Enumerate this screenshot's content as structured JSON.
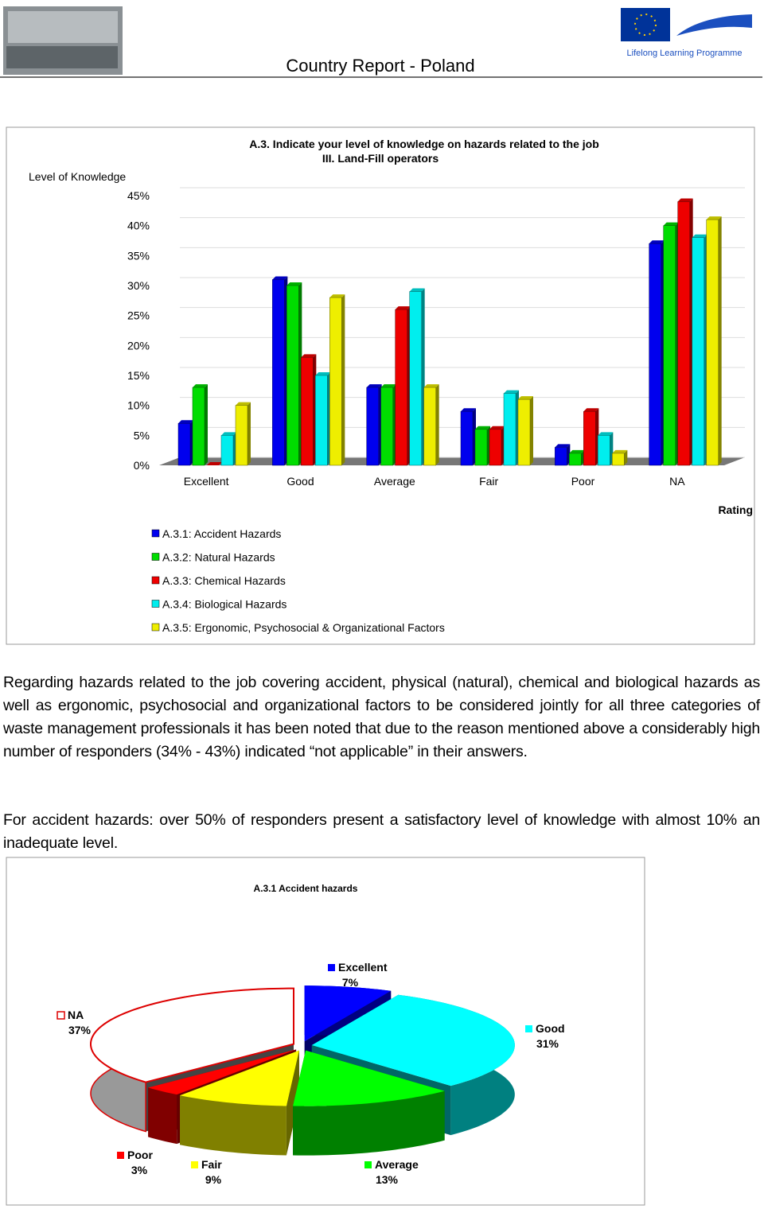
{
  "header": {
    "title": "Country Report - Poland",
    "programme": "Lifelong Learning Programme"
  },
  "chart_data": [
    {
      "type": "bar",
      "title": "A.3. Indicate your level of knowledge on hazards related to the job",
      "subtitle": "III. Land-Fill operators",
      "ylabel": "Level of Knowledge",
      "xlabel": "Rating",
      "categories": [
        "Excellent",
        "Good",
        "Average",
        "Fair",
        "Poor",
        "NA"
      ],
      "series": [
        {
          "name": "A.3.1: Accident Hazards",
          "color": "#0000ee",
          "values": [
            7,
            31,
            13,
            9,
            3,
            37
          ]
        },
        {
          "name": "A.3.2: Natural Hazards",
          "color": "#00dd00",
          "values": [
            13,
            30,
            13,
            6,
            2,
            40
          ]
        },
        {
          "name": "A.3.3: Chemical Hazards",
          "color": "#ee0000",
          "values": [
            0,
            18,
            26,
            6,
            9,
            44
          ]
        },
        {
          "name": "A.3.4: Biological Hazards",
          "color": "#00eeee",
          "values": [
            5,
            15,
            29,
            12,
            5,
            38
          ]
        },
        {
          "name": "A.3.5: Ergonomic, Psychosocial & Organizational Factors",
          "color": "#eeee00",
          "values": [
            10,
            28,
            13,
            11,
            2,
            41
          ]
        }
      ],
      "ylim": [
        0,
        45
      ],
      "yticks": [
        {
          "value": 0,
          "label": "0%"
        },
        {
          "value": 5,
          "label": "5%"
        },
        {
          "value": 10,
          "label": "10%"
        },
        {
          "value": 15,
          "label": "15%"
        },
        {
          "value": 20,
          "label": "20%"
        },
        {
          "value": 25,
          "label": "25%"
        },
        {
          "value": 30,
          "label": "30%"
        },
        {
          "value": 35,
          "label": "35%"
        },
        {
          "value": 40,
          "label": "40%"
        },
        {
          "value": 45,
          "label": "45%"
        }
      ],
      "grid": true
    },
    {
      "type": "pie",
      "title": "A.3.1 Accident hazards",
      "categories": [
        "Excellent",
        "Good",
        "Average",
        "Fair",
        "Poor",
        "NA"
      ],
      "values": [
        7,
        31,
        13,
        9,
        3,
        37
      ],
      "value_labels": [
        "7%",
        "31%",
        "13%",
        "9%",
        "3%",
        "37%"
      ],
      "colors": [
        "#0000ff",
        "#00ffff",
        "#00ff00",
        "#ffff00",
        "#ff0000",
        "#ffffff"
      ]
    }
  ],
  "paragraphs": [
    "Regarding hazards related to the job covering accident, physical (natural), chemical and biological hazards as well as ergonomic, psychosocial and organizational factors to be considered jointly for all three categories of waste management professionals it has been noted that due to the reason mentioned above a considerably high number of responders (34% - 43%) indicated “not applicable” in their answers.",
    "For accident hazards: over 50% of responders present a satisfactory level of knowledge with almost 10% an inadequate level."
  ]
}
